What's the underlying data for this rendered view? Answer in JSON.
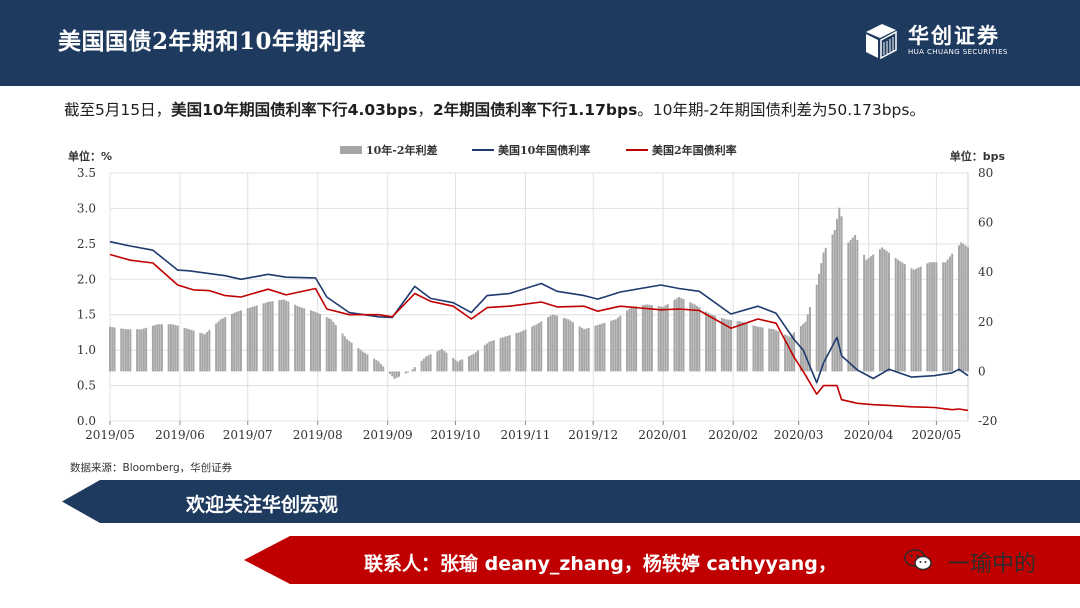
{
  "header": {
    "title": "美国国债2年期和10年期利率"
  },
  "logo": {
    "name_cn": "华创证券",
    "name_en": "HUA CHUANG SECURITIES"
  },
  "summary": {
    "prefix": "截至5月15日，",
    "bold1": "美国10年期国债利率下行4.03bps",
    "sep": "，",
    "bold2": "2年期国债利率下行1.17bps",
    "suffix": "。10年期-2年期国债利差为50.173bps。"
  },
  "source": "数据来源：Bloomberg，华创证券",
  "banner1": {
    "text": "欢迎关注华创宏观"
  },
  "banner2": {
    "text": "联系人：张瑜 deany_zhang，杨轶婷 cathyyang，"
  },
  "wechat": {
    "name": "一瑜中的",
    "icon": "wechat-icon"
  },
  "colors": {
    "header": "#1f3a5f",
    "spread": "#a6a6a6",
    "ten_year": "#1f3a6e",
    "two_year": "#c00000",
    "banner_red": "#c00000"
  },
  "chart_data": {
    "type": "bar+line",
    "left_unit": "单位：%",
    "right_unit": "单位：bps",
    "left_ylim": [
      0,
      3.5
    ],
    "right_ylim": [
      -20,
      80
    ],
    "left_ticks": [
      "0.0",
      "0.5",
      "1.0",
      "1.5",
      "2.0",
      "2.5",
      "3.0",
      "3.5"
    ],
    "right_ticks": [
      "-20",
      "0",
      "20",
      "40",
      "60",
      "80"
    ],
    "x_ticks": [
      "2019/05",
      "2019/06",
      "2019/07",
      "2019/08",
      "2019/09",
      "2019/10",
      "2019/11",
      "2019/12",
      "2020/01",
      "2020/02",
      "2020/03",
      "2020/04",
      "2020/05"
    ],
    "x_range": [
      "2019-05-01",
      "2020-05-15"
    ],
    "legend_position": "top",
    "grid": true,
    "series": [
      {
        "name": "10年-2年利差",
        "type": "bar",
        "axis": "right",
        "points": [
          [
            "2019-05-01",
            18
          ],
          [
            "2019-05-08",
            17
          ],
          [
            "2019-05-15",
            17
          ],
          [
            "2019-05-22",
            19
          ],
          [
            "2019-05-29",
            19
          ],
          [
            "2019-06-05",
            17
          ],
          [
            "2019-06-12",
            15
          ],
          [
            "2019-06-19",
            21
          ],
          [
            "2019-06-26",
            24
          ],
          [
            "2019-07-03",
            26
          ],
          [
            "2019-07-10",
            28
          ],
          [
            "2019-07-17",
            29
          ],
          [
            "2019-07-24",
            26
          ],
          [
            "2019-07-31",
            24
          ],
          [
            "2019-08-07",
            21
          ],
          [
            "2019-08-14",
            13
          ],
          [
            "2019-08-21",
            8
          ],
          [
            "2019-08-28",
            4
          ],
          [
            "2019-09-04",
            -3
          ],
          [
            "2019-09-11",
            0
          ],
          [
            "2019-09-18",
            6
          ],
          [
            "2019-09-25",
            9
          ],
          [
            "2019-10-02",
            4
          ],
          [
            "2019-10-09",
            7
          ],
          [
            "2019-10-16",
            12
          ],
          [
            "2019-10-23",
            14
          ],
          [
            "2019-10-30",
            16
          ],
          [
            "2019-11-06",
            19
          ],
          [
            "2019-11-13",
            23
          ],
          [
            "2019-11-20",
            21
          ],
          [
            "2019-11-27",
            17
          ],
          [
            "2019-12-04",
            19
          ],
          [
            "2019-12-11",
            21
          ],
          [
            "2019-12-18",
            26
          ],
          [
            "2019-12-25",
            27
          ],
          [
            "2020-01-01",
            26
          ],
          [
            "2020-01-08",
            30
          ],
          [
            "2020-01-15",
            27
          ],
          [
            "2020-01-22",
            23
          ],
          [
            "2020-01-29",
            21
          ],
          [
            "2020-02-05",
            20
          ],
          [
            "2020-02-12",
            18
          ],
          [
            "2020-02-19",
            17
          ],
          [
            "2020-02-26",
            14
          ],
          [
            "2020-03-04",
            20
          ],
          [
            "2020-03-09",
            35
          ],
          [
            "2020-03-12",
            48
          ],
          [
            "2020-03-17",
            57
          ],
          [
            "2020-03-19",
            66
          ],
          [
            "2020-03-23",
            52
          ],
          [
            "2020-03-26",
            55
          ],
          [
            "2020-03-31",
            45
          ],
          [
            "2020-04-07",
            50
          ],
          [
            "2020-04-14",
            45
          ],
          [
            "2020-04-21",
            41
          ],
          [
            "2020-04-28",
            44
          ],
          [
            "2020-05-05",
            44
          ],
          [
            "2020-05-12",
            52
          ],
          [
            "2020-05-15",
            50
          ]
        ]
      },
      {
        "name": "美国10年国债利率",
        "type": "line",
        "axis": "left",
        "points": [
          [
            "2019-05-01",
            2.53
          ],
          [
            "2019-05-10",
            2.47
          ],
          [
            "2019-05-20",
            2.41
          ],
          [
            "2019-05-31",
            2.13
          ],
          [
            "2019-06-05",
            2.12
          ],
          [
            "2019-06-14",
            2.08
          ],
          [
            "2019-06-21",
            2.05
          ],
          [
            "2019-06-28",
            2.0
          ],
          [
            "2019-07-10",
            2.07
          ],
          [
            "2019-07-18",
            2.03
          ],
          [
            "2019-07-31",
            2.02
          ],
          [
            "2019-08-05",
            1.75
          ],
          [
            "2019-08-15",
            1.53
          ],
          [
            "2019-08-28",
            1.47
          ],
          [
            "2019-09-03",
            1.46
          ],
          [
            "2019-09-13",
            1.9
          ],
          [
            "2019-09-20",
            1.73
          ],
          [
            "2019-09-30",
            1.67
          ],
          [
            "2019-10-08",
            1.53
          ],
          [
            "2019-10-15",
            1.77
          ],
          [
            "2019-10-25",
            1.8
          ],
          [
            "2019-11-08",
            1.94
          ],
          [
            "2019-11-15",
            1.83
          ],
          [
            "2019-11-27",
            1.77
          ],
          [
            "2019-12-03",
            1.72
          ],
          [
            "2019-12-13",
            1.82
          ],
          [
            "2019-12-31",
            1.92
          ],
          [
            "2020-01-08",
            1.87
          ],
          [
            "2020-01-17",
            1.83
          ],
          [
            "2020-01-31",
            1.51
          ],
          [
            "2020-02-12",
            1.62
          ],
          [
            "2020-02-20",
            1.52
          ],
          [
            "2020-02-28",
            1.15
          ],
          [
            "2020-03-03",
            1.0
          ],
          [
            "2020-03-09",
            0.54
          ],
          [
            "2020-03-12",
            0.82
          ],
          [
            "2020-03-18",
            1.18
          ],
          [
            "2020-03-20",
            0.92
          ],
          [
            "2020-03-27",
            0.72
          ],
          [
            "2020-04-03",
            0.6
          ],
          [
            "2020-04-10",
            0.73
          ],
          [
            "2020-04-20",
            0.62
          ],
          [
            "2020-04-30",
            0.64
          ],
          [
            "2020-05-08",
            0.68
          ],
          [
            "2020-05-11",
            0.73
          ],
          [
            "2020-05-15",
            0.64
          ]
        ]
      },
      {
        "name": "美国2年国债利率",
        "type": "line",
        "axis": "left",
        "points": [
          [
            "2019-05-01",
            2.35
          ],
          [
            "2019-05-10",
            2.27
          ],
          [
            "2019-05-20",
            2.23
          ],
          [
            "2019-05-31",
            1.92
          ],
          [
            "2019-06-07",
            1.85
          ],
          [
            "2019-06-14",
            1.84
          ],
          [
            "2019-06-21",
            1.77
          ],
          [
            "2019-06-28",
            1.75
          ],
          [
            "2019-07-10",
            1.86
          ],
          [
            "2019-07-18",
            1.78
          ],
          [
            "2019-07-31",
            1.87
          ],
          [
            "2019-08-05",
            1.58
          ],
          [
            "2019-08-15",
            1.5
          ],
          [
            "2019-08-28",
            1.5
          ],
          [
            "2019-09-03",
            1.47
          ],
          [
            "2019-09-13",
            1.8
          ],
          [
            "2019-09-20",
            1.69
          ],
          [
            "2019-09-30",
            1.62
          ],
          [
            "2019-10-08",
            1.44
          ],
          [
            "2019-10-15",
            1.6
          ],
          [
            "2019-10-25",
            1.62
          ],
          [
            "2019-11-08",
            1.68
          ],
          [
            "2019-11-15",
            1.61
          ],
          [
            "2019-11-27",
            1.62
          ],
          [
            "2019-12-03",
            1.55
          ],
          [
            "2019-12-13",
            1.62
          ],
          [
            "2019-12-31",
            1.57
          ],
          [
            "2020-01-08",
            1.58
          ],
          [
            "2020-01-17",
            1.56
          ],
          [
            "2020-01-31",
            1.31
          ],
          [
            "2020-02-12",
            1.44
          ],
          [
            "2020-02-20",
            1.38
          ],
          [
            "2020-02-28",
            0.9
          ],
          [
            "2020-03-03",
            0.7
          ],
          [
            "2020-03-09",
            0.38
          ],
          [
            "2020-03-12",
            0.5
          ],
          [
            "2020-03-18",
            0.5
          ],
          [
            "2020-03-20",
            0.3
          ],
          [
            "2020-03-27",
            0.25
          ],
          [
            "2020-04-03",
            0.23
          ],
          [
            "2020-04-10",
            0.22
          ],
          [
            "2020-04-20",
            0.2
          ],
          [
            "2020-04-30",
            0.19
          ],
          [
            "2020-05-08",
            0.16
          ],
          [
            "2020-05-11",
            0.17
          ],
          [
            "2020-05-15",
            0.15
          ]
        ]
      }
    ]
  }
}
